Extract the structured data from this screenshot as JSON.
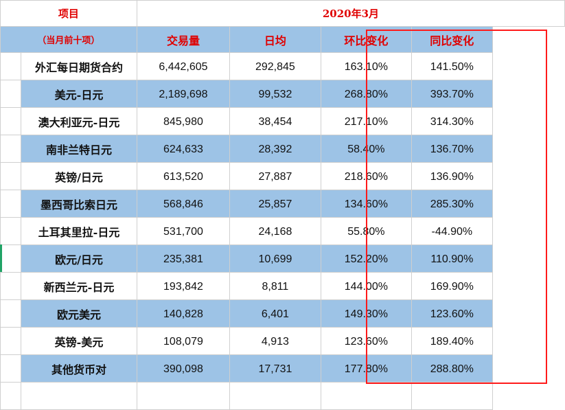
{
  "header": {
    "item_label": "项目",
    "period_label": "2020年3月"
  },
  "columns": {
    "lead": "（当月前十项）",
    "volume": "交易量",
    "daily": "日均",
    "mom": "环比变化",
    "yoy": "同比变化"
  },
  "rows": [
    {
      "name": "外汇每日期货合约",
      "volume": "6,442,605",
      "daily": "292,845",
      "mom": "163.10%",
      "yoy": "141.50%",
      "band": "white"
    },
    {
      "name": "美元-日元",
      "volume": "2,189,698",
      "daily": "99,532",
      "mom": "268.80%",
      "yoy": "393.70%",
      "band": "blue"
    },
    {
      "name": "澳大利亚元-日元",
      "volume": "845,980",
      "daily": "38,454",
      "mom": "217.10%",
      "yoy": "314.30%",
      "band": "white"
    },
    {
      "name": "南非兰特日元",
      "volume": "624,633",
      "daily": "28,392",
      "mom": "58.40%",
      "yoy": "136.70%",
      "band": "blue"
    },
    {
      "name": "英镑/日元",
      "volume": "613,520",
      "daily": "27,887",
      "mom": "218.60%",
      "yoy": "136.90%",
      "band": "white"
    },
    {
      "name": "墨西哥比索日元",
      "volume": "568,846",
      "daily": "25,857",
      "mom": "134.60%",
      "yoy": "285.30%",
      "band": "blue"
    },
    {
      "name": "土耳其里拉-日元",
      "volume": "531,700",
      "daily": "24,168",
      "mom": "55.80%",
      "yoy": "-44.90%",
      "band": "white"
    },
    {
      "name": "欧元/日元",
      "volume": "235,381",
      "daily": "10,699",
      "mom": "152.20%",
      "yoy": "110.90%",
      "band": "blue"
    },
    {
      "name": "新西兰元-日元",
      "volume": "193,842",
      "daily": "8,811",
      "mom": "144.00%",
      "yoy": "169.90%",
      "band": "white"
    },
    {
      "name": "欧元美元",
      "volume": "140,828",
      "daily": "6,401",
      "mom": "149.30%",
      "yoy": "123.60%",
      "band": "blue"
    },
    {
      "name": "英镑-美元",
      "volume": "108,079",
      "daily": "4,913",
      "mom": "123.60%",
      "yoy": "189.40%",
      "band": "white"
    },
    {
      "name": "其他货币对",
      "volume": "390,098",
      "daily": "17,731",
      "mom": "177.80%",
      "yoy": "288.80%",
      "band": "blue"
    }
  ],
  "colors": {
    "band_blue": "#9dc3e6",
    "header_red": "#e00000",
    "highlight_red": "#ff1a1a"
  }
}
